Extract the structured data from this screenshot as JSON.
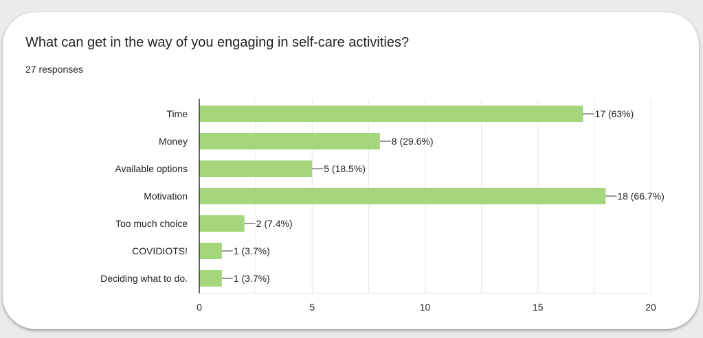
{
  "title": "What can get in the way of you engaging in self-care activities?",
  "subtitle": "27 responses",
  "colors": {
    "bar": "#a5d67b",
    "grid": "#e6e6e6",
    "axis": "#333333",
    "text": "#202124"
  },
  "chart_data": {
    "type": "bar",
    "orientation": "horizontal",
    "categories": [
      "Time",
      "Money",
      "Available options",
      "Motivation",
      "Too much choice",
      "COVIDIOTS!",
      "Deciding what to do."
    ],
    "values": [
      17,
      8,
      5,
      18,
      2,
      1,
      1
    ],
    "data_labels": [
      "17 (63%)",
      "8 (29.6%)",
      "5 (18.5%)",
      "18 (66.7%)",
      "2 (7.4%)",
      "1 (3.7%)",
      "1 (3.7%)"
    ],
    "xlim": [
      0,
      20
    ],
    "x_ticks": [
      0,
      5,
      10,
      15,
      20
    ],
    "grid": true,
    "title": "What can get in the way of you engaging in self-care activities?",
    "xlabel": "",
    "ylabel": ""
  }
}
